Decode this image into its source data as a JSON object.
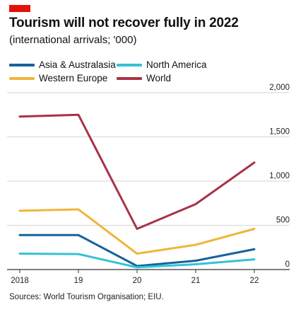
{
  "chart_data": {
    "type": "line",
    "title": "Tourism will not recover fully in 2022",
    "subtitle": "(international arrivals; '000)",
    "source": "Sources: World Tourism Organisation; EIU.",
    "x": [
      "2018",
      "19",
      "20",
      "21",
      "22"
    ],
    "y_ticks": [
      "0",
      "500",
      "1,000",
      "1,500",
      "2,000"
    ],
    "ylim": [
      0,
      2000
    ],
    "grid": true,
    "legend_position": "top-left",
    "series": [
      {
        "name": "Asia & Australasia",
        "color": "#17629a",
        "values": [
          390,
          390,
          40,
          100,
          230
        ]
      },
      {
        "name": "North America",
        "color": "#36c2d6",
        "values": [
          180,
          175,
          25,
          60,
          115
        ]
      },
      {
        "name": "Western Europe",
        "color": "#f0b63a",
        "values": [
          665,
          680,
          180,
          280,
          460
        ]
      },
      {
        "name": "World",
        "color": "#a83246",
        "values": [
          1730,
          1750,
          460,
          740,
          1210
        ]
      }
    ]
  },
  "colors": {
    "accent_tag": "#e3120b",
    "grid": "#d6d6d6",
    "axis": "#333333"
  }
}
